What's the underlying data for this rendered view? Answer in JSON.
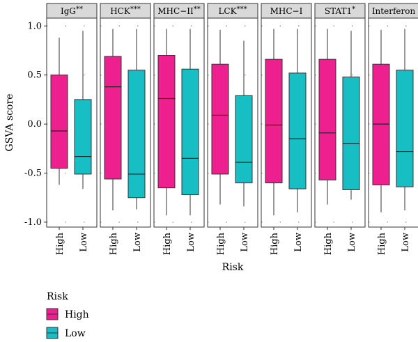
{
  "chart_data": {
    "type": "boxplot",
    "ylabel": "GSVA score",
    "xlabel": "Risk",
    "ylim": [
      -1.05,
      1.08
    ],
    "yticks": [
      {
        "value": 1.0,
        "label": "1.0"
      },
      {
        "value": 0.5,
        "label": "0.5"
      },
      {
        "value": 0.0,
        "label": "0.0"
      },
      {
        "value": -0.5,
        "label": "-0.5"
      },
      {
        "value": -1.0,
        "label": "-1.0"
      }
    ],
    "categories": [
      "High",
      "Low"
    ],
    "colors": {
      "High": "#ee1f8e",
      "Low": "#17bfc4"
    },
    "legend": {
      "title": "Risk",
      "position": "bottom-left",
      "entries": [
        {
          "label": "High",
          "color": "#ee1f8e"
        },
        {
          "label": "Low",
          "color": "#17bfc4"
        }
      ]
    },
    "panels": [
      {
        "name": "IgG",
        "sig": "**",
        "boxes": {
          "High": {
            "min": -0.62,
            "q1": -0.45,
            "median": -0.07,
            "q3": 0.5,
            "max": 0.88
          },
          "Low": {
            "min": -0.66,
            "q1": -0.51,
            "median": -0.33,
            "q3": 0.25,
            "max": 0.95
          }
        }
      },
      {
        "name": "HCK",
        "sig": "***",
        "boxes": {
          "High": {
            "min": -0.88,
            "q1": -0.56,
            "median": 0.38,
            "q3": 0.69,
            "max": 0.97
          },
          "Low": {
            "min": -0.87,
            "q1": -0.75,
            "median": -0.51,
            "q3": 0.55,
            "max": 0.97
          }
        }
      },
      {
        "name": "MHC−II",
        "sig": "**",
        "boxes": {
          "High": {
            "min": -0.93,
            "q1": -0.65,
            "median": 0.26,
            "q3": 0.7,
            "max": 0.97
          },
          "Low": {
            "min": -0.93,
            "q1": -0.72,
            "median": -0.35,
            "q3": 0.56,
            "max": 0.97
          }
        }
      },
      {
        "name": "LCK",
        "sig": "***",
        "boxes": {
          "High": {
            "min": -0.82,
            "q1": -0.51,
            "median": 0.09,
            "q3": 0.61,
            "max": 0.96
          },
          "Low": {
            "min": -0.84,
            "q1": -0.6,
            "median": -0.39,
            "q3": 0.29,
            "max": 0.85
          }
        }
      },
      {
        "name": "MHC−I",
        "sig": "",
        "boxes": {
          "High": {
            "min": -0.93,
            "q1": -0.6,
            "median": -0.01,
            "q3": 0.66,
            "max": 0.97
          },
          "Low": {
            "min": -0.9,
            "q1": -0.66,
            "median": -0.15,
            "q3": 0.52,
            "max": 0.97
          }
        }
      },
      {
        "name": "STAT1",
        "sig": "*",
        "boxes": {
          "High": {
            "min": -0.82,
            "q1": -0.57,
            "median": -0.09,
            "q3": 0.66,
            "max": 0.97
          },
          "Low": {
            "min": -0.77,
            "q1": -0.67,
            "median": -0.2,
            "q3": 0.48,
            "max": 0.95
          }
        }
      },
      {
        "name": "Interferon",
        "sig": "",
        "boxes": {
          "High": {
            "min": -0.9,
            "q1": -0.62,
            "median": 0.0,
            "q3": 0.61,
            "max": 0.96
          },
          "Low": {
            "min": -0.88,
            "q1": -0.64,
            "median": -0.28,
            "q3": 0.55,
            "max": 0.97
          }
        }
      }
    ]
  }
}
